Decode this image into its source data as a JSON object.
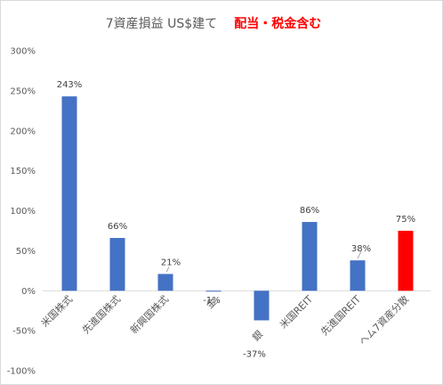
{
  "chart_data": {
    "type": "bar",
    "title": "7資産損益 US$建て",
    "title_accent": "配当・税金含む",
    "categories": [
      "米国株式",
      "先進国株式",
      "新興国株式",
      "金",
      "銀",
      "米国REIT",
      "先進国REIT",
      "ヘム7資産分散"
    ],
    "values": [
      243,
      66,
      21,
      -1,
      -37,
      86,
      38,
      75
    ],
    "data_labels": [
      "243%",
      "66%",
      "21%",
      "-1%",
      "-37%",
      "86%",
      "38%",
      "75%"
    ],
    "bar_colors": [
      "#4472c4",
      "#4472c4",
      "#4472c4",
      "#4472c4",
      "#4472c4",
      "#4472c4",
      "#4472c4",
      "#ff0000"
    ],
    "ylim": [
      -100,
      300
    ],
    "yticks": [
      300,
      250,
      200,
      150,
      100,
      50,
      0,
      -50,
      -100
    ],
    "ytick_labels": [
      "300%",
      "250%",
      "200%",
      "150%",
      "100%",
      "50%",
      "0%",
      "-50%",
      "-100%"
    ],
    "xlabel": "",
    "ylabel": "",
    "grid": false,
    "legend": "none"
  }
}
